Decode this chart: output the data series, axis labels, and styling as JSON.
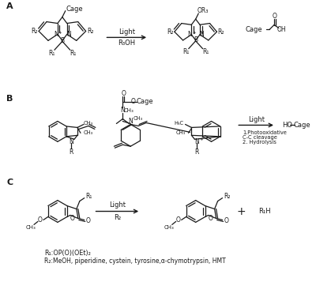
{
  "bg_color": "#ffffff",
  "line_color": "#1a1a1a",
  "text_color": "#1a1a1a",
  "sections": [
    "A",
    "B",
    "C"
  ],
  "footnote1": "R₁:OP(O)(OEt)₂",
  "footnote2": "R₂:MeOH, piperidine, cystein, tyrosine,α-chymotrypsin, HMT"
}
